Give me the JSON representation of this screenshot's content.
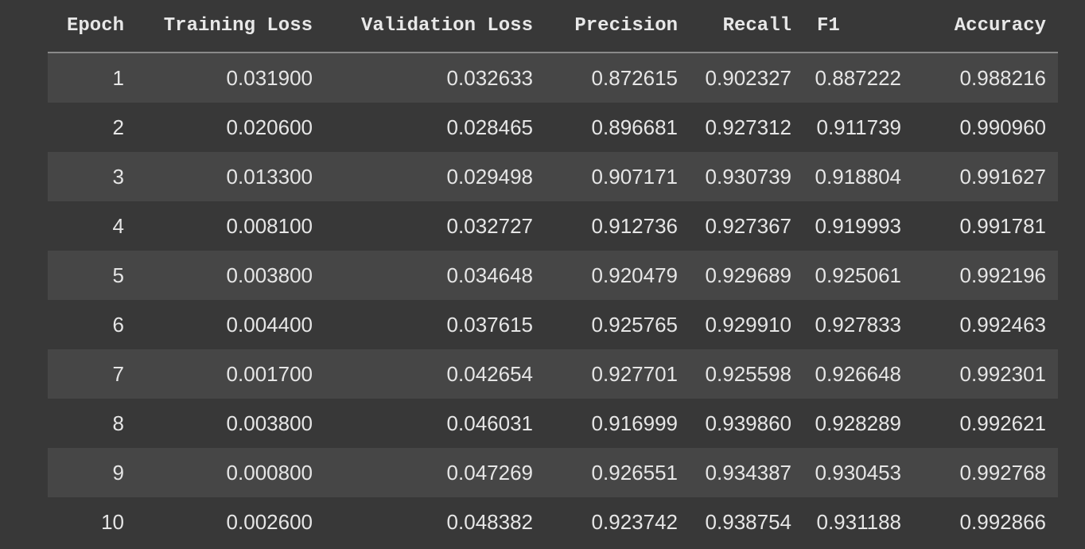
{
  "table": {
    "headers": [
      "Epoch",
      "Training Loss",
      "Validation Loss",
      "Precision",
      "Recall",
      "F1",
      "Accuracy"
    ],
    "rows": [
      [
        "1",
        "0.031900",
        "0.032633",
        "0.872615",
        "0.902327",
        "0.887222",
        "0.988216"
      ],
      [
        "2",
        "0.020600",
        "0.028465",
        "0.896681",
        "0.927312",
        "0.911739",
        "0.990960"
      ],
      [
        "3",
        "0.013300",
        "0.029498",
        "0.907171",
        "0.930739",
        "0.918804",
        "0.991627"
      ],
      [
        "4",
        "0.008100",
        "0.032727",
        "0.912736",
        "0.927367",
        "0.919993",
        "0.991781"
      ],
      [
        "5",
        "0.003800",
        "0.034648",
        "0.920479",
        "0.929689",
        "0.925061",
        "0.992196"
      ],
      [
        "6",
        "0.004400",
        "0.037615",
        "0.925765",
        "0.929910",
        "0.927833",
        "0.992463"
      ],
      [
        "7",
        "0.001700",
        "0.042654",
        "0.927701",
        "0.925598",
        "0.926648",
        "0.992301"
      ],
      [
        "8",
        "0.003800",
        "0.046031",
        "0.916999",
        "0.939860",
        "0.928289",
        "0.992621"
      ],
      [
        "9",
        "0.000800",
        "0.047269",
        "0.926551",
        "0.934387",
        "0.930453",
        "0.992768"
      ],
      [
        "10",
        "0.002600",
        "0.048382",
        "0.923742",
        "0.938754",
        "0.931188",
        "0.992866"
      ]
    ]
  }
}
